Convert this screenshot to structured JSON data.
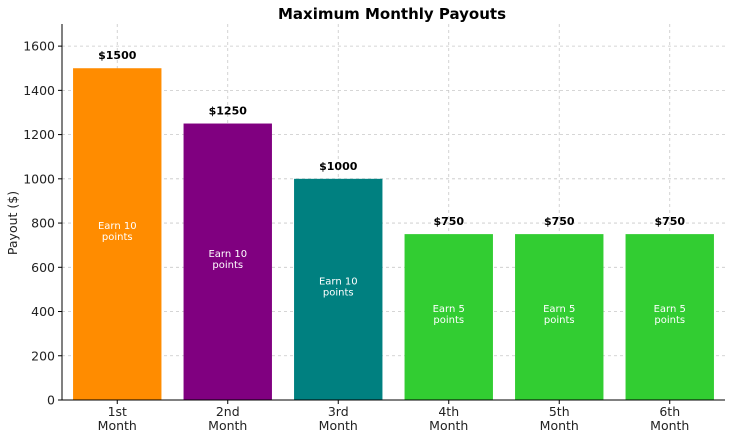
{
  "chart_data": {
    "type": "bar",
    "title": "Maximum Monthly Payouts",
    "xlabel": "",
    "ylabel": "Payout ($)",
    "categories": [
      [
        "1st",
        "Month"
      ],
      [
        "2nd",
        "Month"
      ],
      [
        "3rd",
        "Month"
      ],
      [
        "4th",
        "Month"
      ],
      [
        "5th",
        "Month"
      ],
      [
        "6th",
        "Month"
      ]
    ],
    "values": [
      1500,
      1250,
      1000,
      750,
      750,
      750
    ],
    "value_labels": [
      "$1500",
      "$1250",
      "$1000",
      "$750",
      "$750",
      "$750"
    ],
    "inner_labels": [
      [
        "Earn 10",
        "points"
      ],
      [
        "Earn 10",
        "points"
      ],
      [
        "Earn 10",
        "points"
      ],
      [
        "Earn 5",
        "points"
      ],
      [
        "Earn 5",
        "points"
      ],
      [
        "Earn 5",
        "points"
      ]
    ],
    "colors": [
      "#ff8c00",
      "#800080",
      "#008080",
      "#32cd32",
      "#32cd32",
      "#32cd32"
    ],
    "ylim": [
      0,
      1700
    ],
    "yticks": [
      0,
      200,
      400,
      600,
      800,
      1000,
      1200,
      1400,
      1600
    ],
    "grid": true
  }
}
